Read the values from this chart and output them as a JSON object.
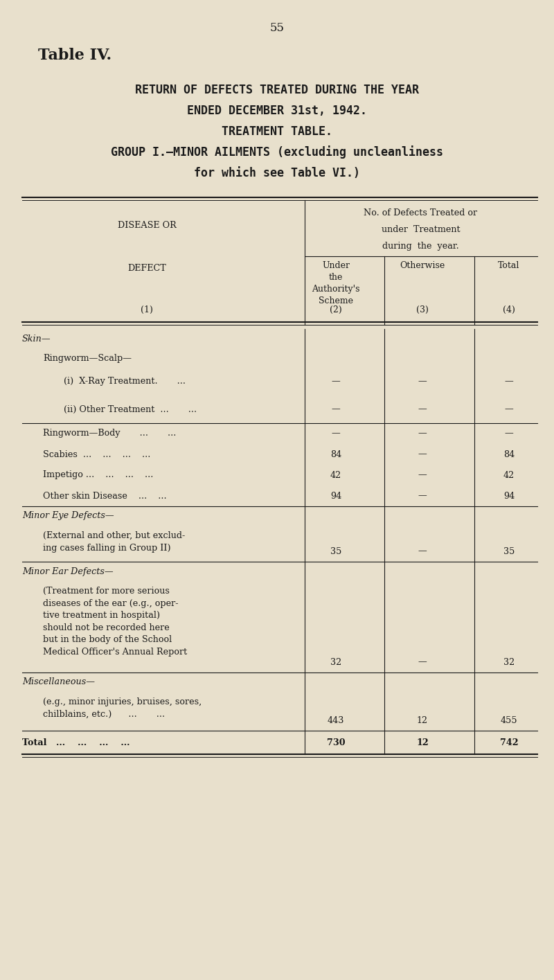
{
  "bg_color": "#e8e0cc",
  "page_number": "55",
  "table_title": "Table IV.",
  "header_line1": "RETURN OF DEFECTS TREATED DURING THE YEAR",
  "header_line2": "ENDED DECEMBER 31st, 1942.",
  "header_line3": "TREATMENT TABLE.",
  "header_line4": "GROUP I.—MINOR AILMENTS (excluding uncleanliness",
  "header_line5": "for which see Table VI.)",
  "rows": [
    {
      "label": "Skin—",
      "italic": true,
      "indent": 0,
      "col1": "",
      "col2": "",
      "col3": "",
      "separator": false,
      "bold": false
    },
    {
      "label": "Ringworm—Scalp—",
      "italic": false,
      "indent": 1,
      "col1": "",
      "col2": "",
      "col3": "",
      "separator": false,
      "bold": false
    },
    {
      "label": "(i)  X-Ray Treatment.       ...",
      "italic": false,
      "indent": 2,
      "col1": "—",
      "col2": "—",
      "col3": "—",
      "separator": false,
      "bold": false
    },
    {
      "label": "(ii) Other Treatment  ...       ...",
      "italic": false,
      "indent": 2,
      "col1": "—",
      "col2": "—",
      "col3": "—",
      "separator": true,
      "bold": false
    },
    {
      "label": "Ringworm—Body       ...       ...",
      "italic": false,
      "indent": 1,
      "col1": "—",
      "col2": "—",
      "col3": "—",
      "separator": false,
      "bold": false
    },
    {
      "label": "Scabies  ...    ...    ...    ...",
      "italic": false,
      "indent": 1,
      "col1": "84",
      "col2": "—",
      "col3": "84",
      "separator": false,
      "bold": false
    },
    {
      "label": "Impetigo ...    ...    ...    ...",
      "italic": false,
      "indent": 1,
      "col1": "42",
      "col2": "—",
      "col3": "42",
      "separator": false,
      "bold": false
    },
    {
      "label": "Other skin Disease    ...    ...",
      "italic": false,
      "indent": 1,
      "col1": "94",
      "col2": "—",
      "col3": "94",
      "separator": true,
      "bold": false
    },
    {
      "label": "Minor Eye Defects—",
      "italic": true,
      "indent": 0,
      "col1": "",
      "col2": "",
      "col3": "",
      "separator": false,
      "bold": false
    },
    {
      "label": "(External and other, but exclud-\ning cases falling in Group II)",
      "italic": false,
      "indent": 1,
      "col1": "35",
      "col2": "—",
      "col3": "35",
      "separator": true,
      "bold": false
    },
    {
      "label": "Minor Ear Defects—",
      "italic": true,
      "indent": 0,
      "col1": "",
      "col2": "",
      "col3": "",
      "separator": false,
      "bold": false
    },
    {
      "label": "(Treatment for more serious\ndiseases of the ear (e.g., oper-\ntive treatment in hospital)\nshould not be recorded here\nbut in the body of the School\nMedical Officer's Annual Report",
      "italic": false,
      "indent": 1,
      "col1": "32",
      "col2": "—",
      "col3": "32",
      "separator": true,
      "bold": false
    },
    {
      "label": "Miscellaneous—",
      "italic": true,
      "indent": 0,
      "col1": "",
      "col2": "",
      "col3": "",
      "separator": false,
      "bold": false
    },
    {
      "label": "(e.g., minor injuries, bruises, sores,\nchilblains, etc.)      ...       ...",
      "italic": false,
      "indent": 1,
      "col1": "443",
      "col2": "12",
      "col3": "455",
      "separator": true,
      "bold": false
    },
    {
      "label": "Total   ...    ...    ...    ...",
      "italic": false,
      "indent": 0,
      "col1": "730",
      "col2": "12",
      "col3": "742",
      "separator": true,
      "bold": true
    }
  ],
  "row_heights": [
    0.28,
    0.28,
    0.4,
    0.4,
    0.3,
    0.3,
    0.3,
    0.3,
    0.28,
    0.52,
    0.28,
    1.32,
    0.28,
    0.56,
    0.34
  ]
}
